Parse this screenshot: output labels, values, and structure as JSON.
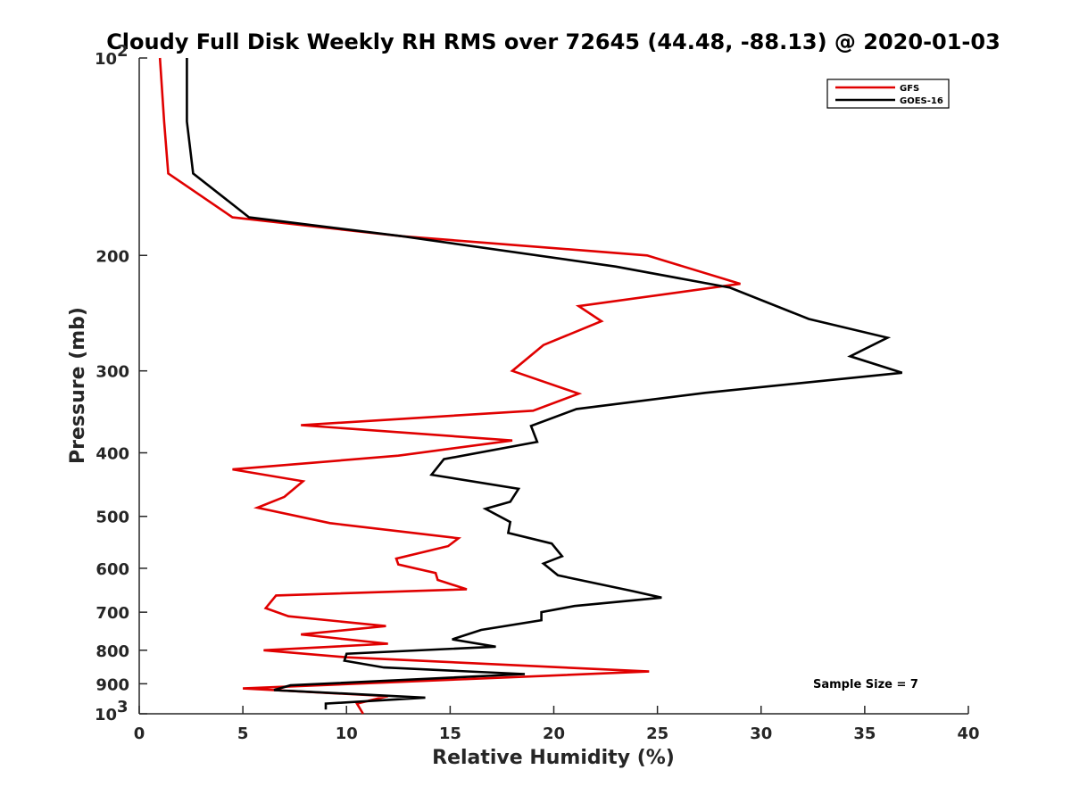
{
  "chart_data": {
    "type": "line",
    "title": "Cloudy Full Disk Weekly RH RMS over 72645 (44.48, -88.13) @ 2020-01-03",
    "xlabel": "Relative Humidity (%)",
    "ylabel": "Pressure (mb)",
    "xlim": [
      0,
      40
    ],
    "ylim": [
      100,
      1000
    ],
    "y_scale": "log",
    "y_reversed": true,
    "grid": false,
    "legend_position": "top-right",
    "x_ticks": [
      0,
      5,
      10,
      15,
      20,
      25,
      30,
      35,
      40
    ],
    "x_tick_labels": [
      "0",
      "5",
      "10",
      "15",
      "20",
      "25",
      "30",
      "35",
      "40"
    ],
    "y_ticks": [
      200,
      300,
      400,
      500,
      600,
      700,
      800,
      900
    ],
    "y_tick_labels": [
      "200",
      "300",
      "400",
      "500",
      "600",
      "700",
      "800",
      "900"
    ],
    "y_top_label": {
      "base": "10",
      "exp": "2"
    },
    "y_bottom_label": {
      "base": "10",
      "exp": "3"
    },
    "annotation": "Sample Size = 7",
    "series": [
      {
        "name": "GFS",
        "color": "#e00000",
        "points": [
          [
            1.0,
            100
          ],
          [
            1.2,
            125
          ],
          [
            1.4,
            150
          ],
          [
            4.5,
            175
          ],
          [
            12.7,
            187
          ],
          [
            24.5,
            200
          ],
          [
            29.0,
            221
          ],
          [
            21.2,
            239
          ],
          [
            22.3,
            252
          ],
          [
            19.5,
            274
          ],
          [
            18.0,
            300
          ],
          [
            21.2,
            325
          ],
          [
            19.0,
            345
          ],
          [
            7.8,
            363
          ],
          [
            18.0,
            383
          ],
          [
            12.5,
            404
          ],
          [
            4.5,
            424
          ],
          [
            7.9,
            442
          ],
          [
            7.0,
            467
          ],
          [
            5.7,
            485
          ],
          [
            9.2,
            512
          ],
          [
            15.4,
            540
          ],
          [
            14.9,
            555
          ],
          [
            12.4,
            580
          ],
          [
            12.5,
            592
          ],
          [
            14.3,
            610
          ],
          [
            14.4,
            625
          ],
          [
            15.8,
            646
          ],
          [
            6.6,
            660
          ],
          [
            6.1,
            690
          ],
          [
            7.2,
            710
          ],
          [
            11.9,
            735
          ],
          [
            7.8,
            757
          ],
          [
            12.0,
            782
          ],
          [
            6.0,
            800
          ],
          [
            10.0,
            820
          ],
          [
            24.6,
            862
          ],
          [
            5.0,
            915
          ],
          [
            12.0,
            940
          ],
          [
            10.5,
            965
          ],
          [
            10.8,
            1000
          ]
        ]
      },
      {
        "name": "GOES-16",
        "color": "#000000",
        "points": [
          [
            2.3,
            100
          ],
          [
            2.3,
            125
          ],
          [
            2.6,
            150
          ],
          [
            5.3,
            175
          ],
          [
            12.7,
            187
          ],
          [
            23.0,
            208
          ],
          [
            28.5,
            224
          ],
          [
            32.3,
            250
          ],
          [
            36.1,
            267
          ],
          [
            34.3,
            285
          ],
          [
            36.8,
            302
          ],
          [
            27.3,
            324
          ],
          [
            21.1,
            343
          ],
          [
            18.9,
            364
          ],
          [
            19.2,
            385
          ],
          [
            14.7,
            409
          ],
          [
            14.1,
            432
          ],
          [
            18.3,
            454
          ],
          [
            17.9,
            475
          ],
          [
            16.7,
            487
          ],
          [
            17.9,
            510
          ],
          [
            17.8,
            530
          ],
          [
            19.9,
            550
          ],
          [
            20.4,
            575
          ],
          [
            19.5,
            590
          ],
          [
            20.2,
            615
          ],
          [
            23.8,
            650
          ],
          [
            25.2,
            665
          ],
          [
            21.0,
            685
          ],
          [
            19.4,
            700
          ],
          [
            19.4,
            720
          ],
          [
            16.5,
            745
          ],
          [
            15.1,
            770
          ],
          [
            17.2,
            790
          ],
          [
            10.0,
            810
          ],
          [
            9.9,
            830
          ],
          [
            11.8,
            850
          ],
          [
            18.6,
            870
          ],
          [
            7.3,
            905
          ],
          [
            6.5,
            920
          ],
          [
            13.8,
            945
          ],
          [
            9.0,
            965
          ],
          [
            9.0,
            985
          ]
        ]
      }
    ]
  }
}
